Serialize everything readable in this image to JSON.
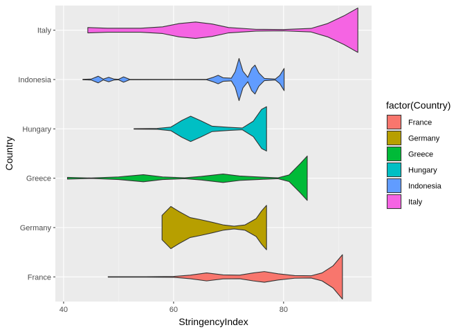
{
  "chart_data": {
    "type": "violin",
    "orientation": "horizontal",
    "title": "",
    "xlabel": "StringencyIndex",
    "ylabel": "Country",
    "xlim": [
      38.5,
      96
    ],
    "x_ticks": [
      40,
      60,
      80
    ],
    "x_minor_ticks": [
      50,
      70,
      90
    ],
    "grid": true,
    "legend": {
      "title": "factor(Country)",
      "position": "right"
    },
    "categories": [
      "France",
      "Germany",
      "Greece",
      "Hungary",
      "Indonesia",
      "Italy"
    ],
    "series": [
      {
        "name": "France",
        "color": "#F8766D",
        "min": 48.1,
        "max": 90.7,
        "density": [
          [
            48.1,
            0.01
          ],
          [
            55,
            0.01
          ],
          [
            60,
            0.02
          ],
          [
            63,
            0.08
          ],
          [
            66,
            0.18
          ],
          [
            69,
            0.09
          ],
          [
            72,
            0.08
          ],
          [
            74.5,
            0.18
          ],
          [
            76.5,
            0.24
          ],
          [
            79,
            0.14
          ],
          [
            82,
            0.06
          ],
          [
            85,
            0.05
          ],
          [
            87,
            0.18
          ],
          [
            89,
            0.5
          ],
          [
            90.7,
            1.0
          ]
        ]
      },
      {
        "name": "Germany",
        "color": "#B79F00",
        "min": 57.9,
        "max": 76.9,
        "density": [
          [
            57.9,
            0.55
          ],
          [
            59.5,
            0.95
          ],
          [
            61,
            0.72
          ],
          [
            63,
            0.45
          ],
          [
            65,
            0.35
          ],
          [
            67,
            0.24
          ],
          [
            69,
            0.12
          ],
          [
            71,
            0.06
          ],
          [
            73,
            0.12
          ],
          [
            75,
            0.4
          ],
          [
            76,
            0.75
          ],
          [
            76.9,
            1.0
          ]
        ]
      },
      {
        "name": "Greece",
        "color": "#00BA38",
        "min": 40.7,
        "max": 84.3,
        "density": [
          [
            40.7,
            0.04
          ],
          [
            45,
            0.01
          ],
          [
            50,
            0.06
          ],
          [
            54.5,
            0.16
          ],
          [
            58,
            0.06
          ],
          [
            62,
            0.02
          ],
          [
            65,
            0.08
          ],
          [
            69,
            0.19
          ],
          [
            72,
            0.1
          ],
          [
            76,
            0.05
          ],
          [
            79,
            0.02
          ],
          [
            81,
            0.15
          ],
          [
            83,
            0.65
          ],
          [
            84.3,
            1.0
          ]
        ]
      },
      {
        "name": "Hungary",
        "color": "#00BFC4",
        "min": 52.8,
        "max": 76.9,
        "density": [
          [
            52.8,
            0.01
          ],
          [
            57,
            0.02
          ],
          [
            59.5,
            0.08
          ],
          [
            61.5,
            0.38
          ],
          [
            63.1,
            0.57
          ],
          [
            65,
            0.36
          ],
          [
            67,
            0.12
          ],
          [
            70,
            0.07
          ],
          [
            72.5,
            0.04
          ],
          [
            74.5,
            0.35
          ],
          [
            76,
            0.88
          ],
          [
            76.9,
            1.0
          ]
        ]
      },
      {
        "name": "Indonesia",
        "color": "#619CFF",
        "min": 43.5,
        "max": 80.1,
        "density": [
          [
            43.5,
            0.01
          ],
          [
            45,
            0.02
          ],
          [
            46.3,
            0.15
          ],
          [
            47.2,
            0.02
          ],
          [
            48.2,
            0.1
          ],
          [
            49.2,
            0.02
          ],
          [
            50,
            0.01
          ],
          [
            50.9,
            0.12
          ],
          [
            52,
            0.01
          ],
          [
            60,
            0.005
          ],
          [
            66,
            0.01
          ],
          [
            67.2,
            0.1
          ],
          [
            68.1,
            0.19
          ],
          [
            69,
            0.08
          ],
          [
            70.5,
            0.06
          ],
          [
            71.2,
            0.35
          ],
          [
            71.9,
            0.95
          ],
          [
            72.6,
            0.38
          ],
          [
            73.5,
            0.1
          ],
          [
            74.2,
            0.5
          ],
          [
            74.8,
            0.65
          ],
          [
            75.5,
            0.3
          ],
          [
            76.5,
            0.05
          ],
          [
            78.5,
            0.02
          ],
          [
            79.3,
            0.18
          ],
          [
            80.1,
            0.5
          ]
        ]
      },
      {
        "name": "Italy",
        "color": "#F564E3",
        "min": 44.4,
        "max": 93.5,
        "density": [
          [
            44.4,
            0.12
          ],
          [
            48,
            0.09
          ],
          [
            54,
            0.09
          ],
          [
            58,
            0.15
          ],
          [
            61,
            0.3
          ],
          [
            64,
            0.37
          ],
          [
            67,
            0.28
          ],
          [
            70,
            0.12
          ],
          [
            75,
            0.04
          ],
          [
            80,
            0.03
          ],
          [
            85,
            0.08
          ],
          [
            88,
            0.3
          ],
          [
            91,
            0.65
          ],
          [
            93.5,
            1.0
          ]
        ]
      }
    ]
  }
}
